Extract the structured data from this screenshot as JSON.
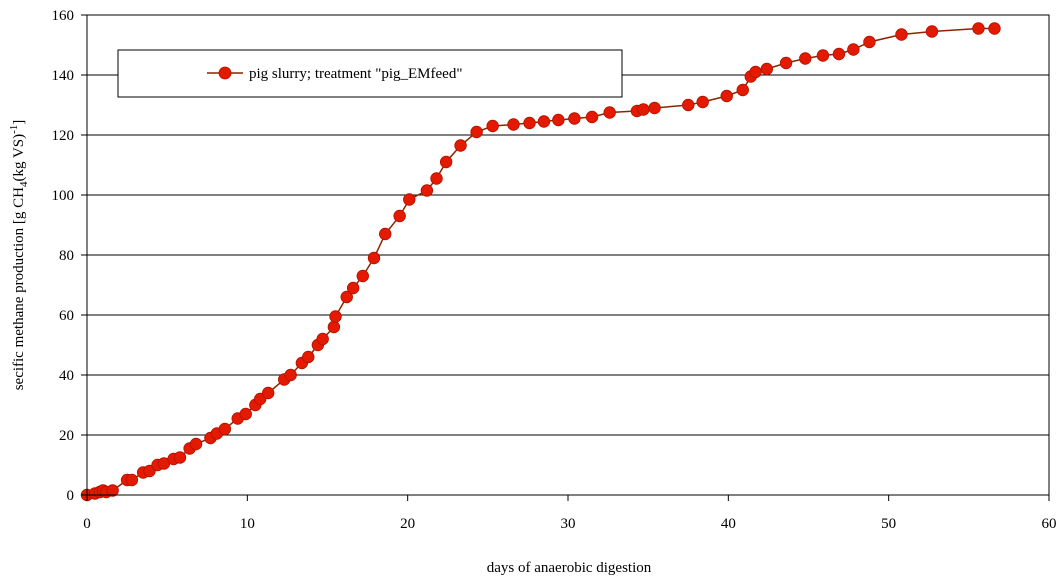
{
  "chart_data": {
    "type": "line",
    "title": "",
    "xlabel": "days of anaerobic digestion",
    "ylabel": {
      "before": "secific methane production [g CH",
      "sub": "4",
      "middle": "(kg VS)",
      "sup": "-1",
      "after": "]"
    },
    "xlim": [
      0,
      60
    ],
    "ylim": [
      0,
      160
    ],
    "xticks": [
      0,
      10,
      20,
      30,
      40,
      50,
      60
    ],
    "yticks": [
      0,
      20,
      40,
      60,
      80,
      100,
      120,
      140,
      160
    ],
    "grid": "horizontal",
    "legend_position": "top-left inside",
    "series": [
      {
        "name": "pig slurry; treatment \"pig_EMfeed\"",
        "line_color": "#8b2500",
        "marker_color": "#e31a00",
        "marker_edge": "#b01000",
        "x": [
          0,
          0.5,
          0.8,
          1.0,
          1.2,
          1.6,
          2.5,
          2.8,
          3.5,
          3.9,
          4.4,
          4.8,
          5.4,
          5.8,
          6.4,
          6.8,
          7.7,
          8.1,
          8.6,
          9.4,
          9.9,
          10.5,
          10.8,
          11.3,
          12.3,
          12.7,
          13.4,
          13.8,
          14.4,
          14.7,
          15.4,
          15.5,
          16.2,
          16.6,
          17.2,
          17.9,
          18.6,
          19.5,
          20.1,
          21.2,
          21.8,
          22.4,
          23.3,
          24.3,
          25.3,
          26.6,
          27.6,
          28.5,
          29.4,
          30.4,
          31.5,
          32.6,
          34.3,
          34.7,
          35.4,
          37.5,
          38.4,
          39.9,
          40.9,
          41.4,
          41.7,
          42.4,
          43.6,
          44.8,
          45.9,
          46.9,
          47.8,
          48.8,
          50.8,
          52.7,
          55.6,
          56.6
        ],
        "y": [
          0,
          0.5,
          1,
          1.5,
          1,
          1.5,
          5,
          5,
          7.5,
          8,
          10,
          10.5,
          12,
          12.5,
          15.5,
          17,
          19,
          20.5,
          22,
          25.5,
          27,
          30,
          32,
          34,
          38.5,
          40,
          44,
          46,
          50,
          52,
          56,
          59.5,
          66,
          69,
          73,
          79,
          87,
          93,
          98.5,
          101.5,
          105.5,
          111,
          116.5,
          121,
          123,
          123.5,
          124,
          124.5,
          125,
          125.5,
          126,
          127.5,
          128,
          128.5,
          129,
          130,
          131,
          133,
          135,
          139.5,
          141,
          142,
          144,
          145.5,
          146.5,
          147,
          148.5,
          151,
          153.5,
          154.5,
          155.5,
          155.5
        ]
      }
    ]
  }
}
